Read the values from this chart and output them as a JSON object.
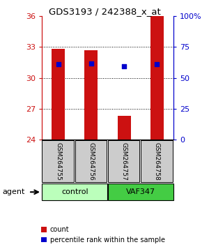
{
  "title": "GDS3193 / 242388_x_at",
  "samples": [
    "GSM264755",
    "GSM264756",
    "GSM264757",
    "GSM264758"
  ],
  "bar_values": [
    32.8,
    32.7,
    26.3,
    36.0
  ],
  "bar_bottom": 24.0,
  "percentile_values": [
    31.3,
    31.4,
    31.1,
    31.3
  ],
  "ylim_left": [
    24,
    36
  ],
  "ylim_right": [
    0,
    100
  ],
  "yticks_left": [
    24,
    27,
    30,
    33,
    36
  ],
  "yticks_right": [
    0,
    25,
    50,
    75,
    100
  ],
  "ytick_labels_right": [
    "0",
    "25",
    "50",
    "75",
    "100%"
  ],
  "bar_color": "#cc1111",
  "dot_color": "#0000cc",
  "groups": [
    {
      "label": "control",
      "samples": [
        0,
        1
      ],
      "color": "#bbffbb"
    },
    {
      "label": "VAF347",
      "samples": [
        2,
        3
      ],
      "color": "#44cc44"
    }
  ],
  "agent_label": "agent",
  "legend_count_label": "count",
  "legend_pct_label": "percentile rank within the sample",
  "background_label_row": "#cccccc",
  "left_axis_color": "#cc1111",
  "right_axis_color": "#0000cc",
  "grid_yticks": [
    27,
    30,
    33
  ]
}
